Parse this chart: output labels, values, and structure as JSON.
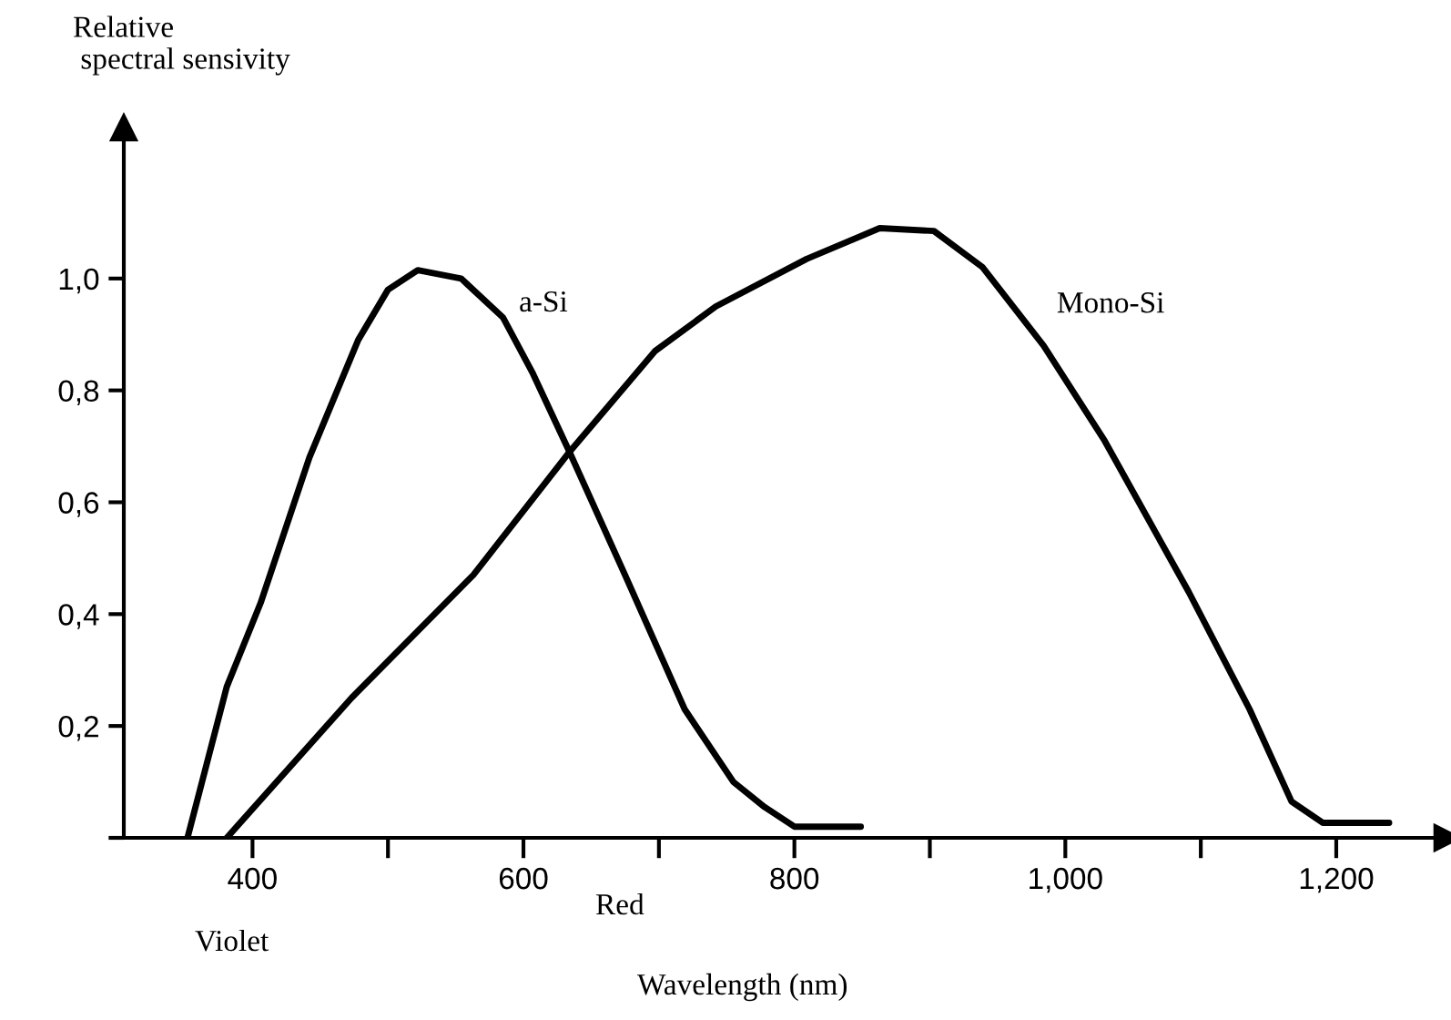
{
  "chart_data": {
    "type": "line",
    "ylabel": "Relative\n spectral sensivity",
    "xlabel": "Wavelength (nm)",
    "annotations": [
      "Violet",
      "Red"
    ],
    "xlim": [
      305,
      1282
    ],
    "ylim": [
      0,
      1.27
    ],
    "xticks": [
      400,
      {
        "value": 500,
        "label": null
      },
      600,
      {
        "value": 700,
        "label": null
      },
      800,
      {
        "value": 900,
        "label": null
      },
      {
        "value": 1000,
        "label": "1,000"
      },
      {
        "value": 1100,
        "label": null
      },
      {
        "value": 1200,
        "label": "1,200"
      }
    ],
    "yticks": [
      {
        "value": 0,
        "label": null
      },
      {
        "value": 0.2,
        "label": "0,2"
      },
      {
        "value": 0.4,
        "label": "0,4"
      },
      {
        "value": 0.6,
        "label": "0,6"
      },
      {
        "value": 0.8,
        "label": "0,8"
      },
      {
        "value": 1.0,
        "label": "1,0"
      }
    ],
    "grid": false,
    "legend": false,
    "marker": "none",
    "line_style": "solid",
    "series": [
      {
        "name": "a-Si",
        "color": "#000000",
        "x": [
          352,
          381,
          406,
          442,
          478,
          500,
          522,
          554,
          585,
          607,
          634,
          675,
          719,
          755,
          778,
          800,
          849
        ],
        "values": [
          0,
          0.27,
          0.42,
          0.68,
          0.89,
          0.98,
          1.015,
          1.0,
          0.93,
          0.83,
          0.69,
          0.47,
          0.23,
          0.1,
          0.055,
          0.02,
          0.02
        ]
      },
      {
        "name": "Mono-Si",
        "color": "#000000",
        "x": [
          381,
          473,
          563,
          634,
          697,
          742,
          809,
          863,
          903,
          939,
          984,
          1029,
          1091,
          1136,
          1167,
          1190,
          1239
        ],
        "values": [
          0,
          0.25,
          0.47,
          0.69,
          0.87,
          0.95,
          1.035,
          1.09,
          1.085,
          1.02,
          0.88,
          0.71,
          0.44,
          0.23,
          0.065,
          0.027,
          0.027
        ]
      }
    ]
  }
}
